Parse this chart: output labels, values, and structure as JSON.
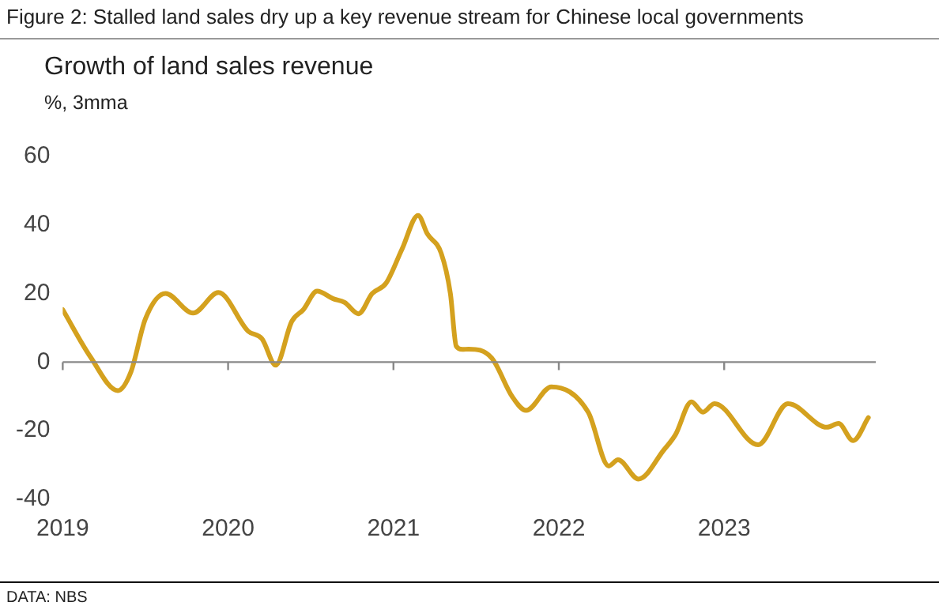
{
  "chart_data": {
    "type": "line",
    "title": "Figure 2: Stalled land sales dry up a key revenue stream for Chinese local governments",
    "subtitle": "Growth of land sales revenue",
    "ylabel": "%, 3mma",
    "annotations": [
      "DATA: NBS"
    ],
    "x": [
      "2019-01-01",
      "2019-03-01",
      "2019-05-01",
      "2019-05-30",
      "2019-07-01",
      "2019-08-15",
      "2019-10-15",
      "2019-12-10",
      "2020-02-15",
      "2020-03-15",
      "2020-04-15",
      "2020-05-20",
      "2020-06-15",
      "2020-07-15",
      "2020-08-20",
      "2020-09-15",
      "2020-10-15",
      "2020-11-15",
      "2020-12-15",
      "2021-01-20",
      "2021-02-25",
      "2021-03-15",
      "2021-04-15",
      "2021-05-05",
      "2021-05-18",
      "2021-06-01",
      "2021-06-15",
      "2021-08-05",
      "2021-09-20",
      "2021-10-20",
      "2021-12-15",
      "2022-03-05",
      "2022-04-20",
      "2022-05-10",
      "2022-06-25",
      "2022-08-20",
      "2022-09-15",
      "2022-10-20",
      "2022-11-15",
      "2022-12-10",
      "2023-03-15",
      "2023-05-20",
      "2023-08-15",
      "2023-09-10",
      "2023-10-12",
      "2023-11-15"
    ],
    "series": [
      {
        "color": "#d4a11e",
        "values": [
          15.3,
          1.6,
          -8.3,
          -2.8,
          12.6,
          20,
          14.3,
          20.3,
          9,
          6.8,
          -0.9,
          11.9,
          15.3,
          20.7,
          18.5,
          17.4,
          14.1,
          20,
          23,
          33,
          42.8,
          37.4,
          31.8,
          20,
          4.6,
          3.7,
          3.8,
          1.2,
          -10.1,
          -14.1,
          -7.2,
          -14.6,
          -30.3,
          -28.5,
          -34.1,
          -25.6,
          -21.2,
          -11.6,
          -14.6,
          -12.1,
          -24.1,
          -12.1,
          -19,
          -17.9,
          -22.9,
          -16.2
        ]
      }
    ],
    "xlim": [
      "2019-01-01",
      "2023-12-01"
    ],
    "xticks": [
      "2019",
      "2020",
      "2021",
      "2022",
      "2023"
    ],
    "ylim": [
      -40,
      60
    ],
    "yticks": [
      -40,
      -20,
      0,
      20,
      40,
      60
    ],
    "ref_lines": [
      {
        "axis": "y",
        "value": 0,
        "color": "#888888"
      }
    ],
    "legend": false,
    "marker": "none",
    "line_style": "solid"
  }
}
